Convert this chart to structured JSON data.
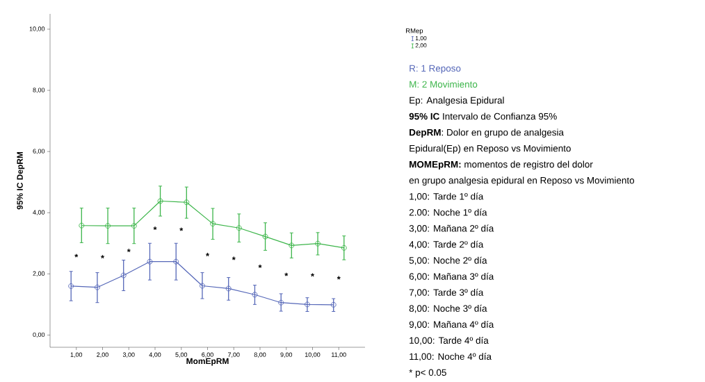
{
  "chart_data": {
    "type": "line",
    "xlabel": "MomEpRM",
    "ylabel": "95% IC DepRM",
    "legend_title": "RMep",
    "categories": [
      "1,00",
      "2,00",
      "3,00",
      "4,00",
      "5,00",
      "6,00",
      "7,00",
      "8,00",
      "9,00",
      "10,00",
      "11,00"
    ],
    "series": [
      {
        "name": "1,00",
        "color": "#5567b8",
        "values": [
          1.6,
          1.56,
          1.95,
          2.4,
          2.4,
          1.61,
          1.52,
          1.32,
          1.06,
          1.0,
          0.99
        ],
        "errors": [
          [
            1.12,
            2.08
          ],
          [
            1.06,
            2.04
          ],
          [
            1.45,
            2.45
          ],
          [
            1.8,
            3.0
          ],
          [
            1.8,
            3.0
          ],
          [
            1.19,
            2.04
          ],
          [
            1.14,
            1.88
          ],
          [
            1.0,
            1.63
          ],
          [
            0.78,
            1.35
          ],
          [
            0.77,
            1.22
          ],
          [
            0.77,
            1.19
          ]
        ]
      },
      {
        "name": "2,00",
        "color": "#3cb54a",
        "values": [
          3.58,
          3.57,
          3.57,
          4.38,
          4.34,
          3.64,
          3.5,
          3.22,
          2.93,
          2.99,
          2.85
        ],
        "errors": [
          [
            3.02,
            4.15
          ],
          [
            2.99,
            4.15
          ],
          [
            2.99,
            4.15
          ],
          [
            3.89,
            4.87
          ],
          [
            3.82,
            4.84
          ],
          [
            3.13,
            4.14
          ],
          [
            3.04,
            3.96
          ],
          [
            2.77,
            3.67
          ],
          [
            2.52,
            3.34
          ],
          [
            2.62,
            3.35
          ],
          [
            2.46,
            3.24
          ]
        ]
      }
    ],
    "ylim": [
      -0.4,
      10.5
    ],
    "yticks": [
      {
        "value": 0,
        "label": "0,00"
      },
      {
        "value": 2,
        "label": "2,00"
      },
      {
        "value": 4,
        "label": "4,00"
      },
      {
        "value": 6,
        "label": "6,00"
      },
      {
        "value": 8,
        "label": "8,00"
      },
      {
        "value": 10,
        "label": "10,00"
      }
    ],
    "marker": "circle",
    "line_style": "solid",
    "grid": false,
    "legend": "right",
    "annotations": [
      "*",
      "*",
      "*",
      "*",
      "*",
      "*",
      "*",
      "*",
      "*",
      "*",
      "*",
      "R:  1  Reposo",
      "M:  2 Movimiento",
      "Ep: Analgesia Epidural",
      "**95% IC** Intervalo de Confianza 95%",
      "**DepRM**: Dolor en grupo de analgesia",
      "Epidural(Ep) en Reposo vs Movimiento",
      "**MOMEpRM:** momentos de registro del dolor",
      "en grupo analgesia epidural en Reposo vs Movimiento",
      "1,00: Tarde 1º día",
      "2.00: Noche 1º día",
      "3,00: Mañana 2º día",
      "4,00: Tarde 2º día",
      "5,00: Noche 2º día",
      "6,00: Mañana 3º día",
      "7,00: Tarde 3º día",
      "8,00: Noche 3º día",
      "9,00: Mañana 4º día",
      "10,00: Tarde 4º día",
      "11,00: Noche 4º día",
      "* p< 0.05"
    ]
  }
}
